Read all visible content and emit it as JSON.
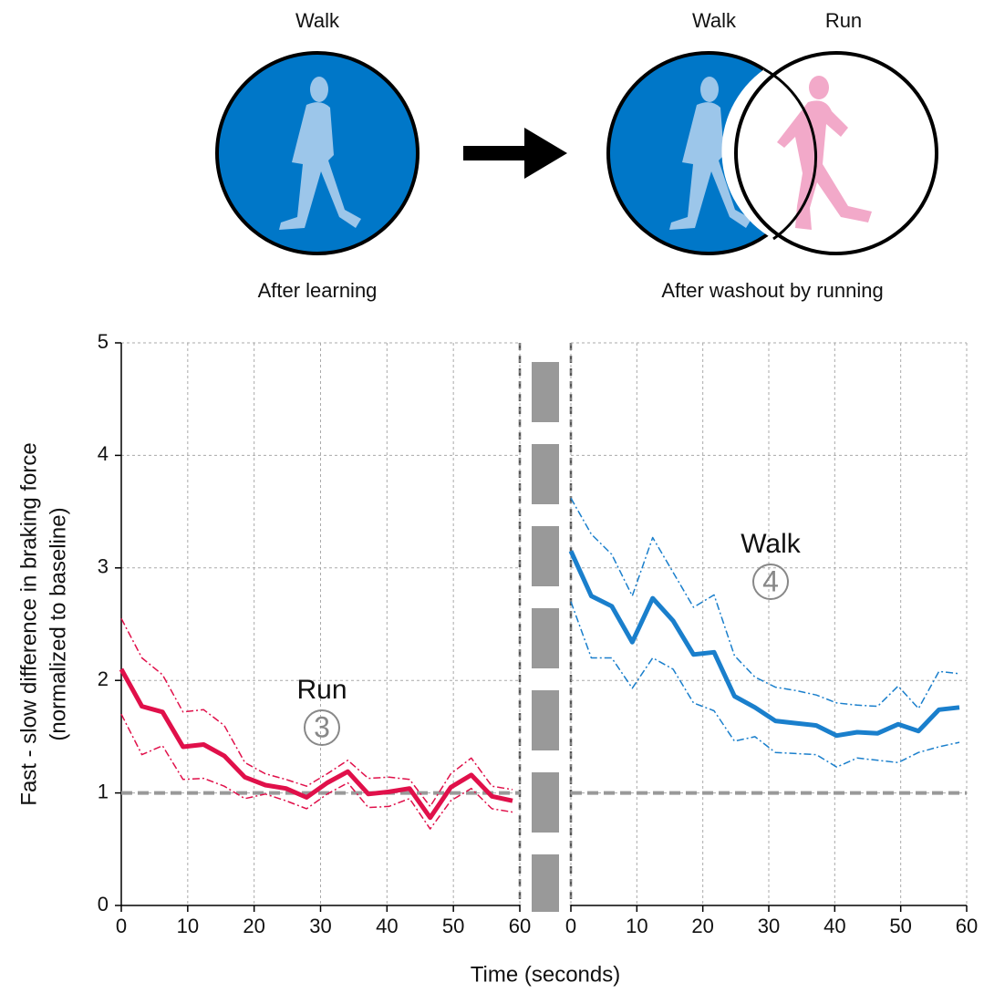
{
  "diagram": {
    "left_circle_label": "Walk",
    "left_caption": "After learning",
    "right_circle_labels": [
      "Walk",
      "Run"
    ],
    "right_caption": "After washout by running"
  },
  "chart_data": [
    {
      "type": "line",
      "annotation": "Run",
      "annotation_number": "3",
      "ylabel": [
        "Fast - slow difference in braking force",
        "(normalized to baseline)"
      ],
      "xlabel": "Time (seconds)",
      "x": [
        0,
        3.1,
        6.2,
        9.3,
        12.4,
        15.5,
        18.6,
        21.7,
        24.8,
        27.9,
        31,
        34.1,
        37.2,
        40.3,
        43.4,
        46.5,
        49.6,
        52.7,
        55.8,
        58.9
      ],
      "series": [
        {
          "color": "#e0104a",
          "dashed": false,
          "values": [
            2.1,
            1.77,
            1.72,
            1.41,
            1.43,
            1.33,
            1.14,
            1.07,
            1.04,
            0.96,
            1.09,
            1.19,
            0.99,
            1.01,
            1.04,
            0.78,
            1.05,
            1.16,
            0.97,
            0.93
          ]
        },
        {
          "color": "#e0104a",
          "dashed": true,
          "values": [
            2.55,
            2.2,
            2.05,
            1.72,
            1.74,
            1.6,
            1.27,
            1.17,
            1.12,
            1.06,
            1.17,
            1.29,
            1.13,
            1.14,
            1.12,
            0.88,
            1.17,
            1.31,
            1.06,
            1.03
          ]
        },
        {
          "color": "#e0104a",
          "dashed": true,
          "values": [
            1.7,
            1.34,
            1.42,
            1.12,
            1.13,
            1.06,
            0.95,
            0.99,
            0.93,
            0.86,
            0.99,
            1.09,
            0.87,
            0.88,
            0.95,
            0.68,
            0.93,
            1.04,
            0.86,
            0.83
          ]
        }
      ],
      "xlim": [
        0,
        60
      ],
      "xticks": [
        0,
        10,
        20,
        30,
        40,
        50,
        60
      ],
      "ylim": [
        0,
        5
      ],
      "yticks": [
        0,
        1,
        2,
        3,
        4,
        5
      ],
      "grid": true,
      "hline": 1
    },
    {
      "type": "line",
      "annotation": "Walk",
      "annotation_number": "4",
      "x": [
        0,
        3.1,
        6.2,
        9.3,
        12.4,
        15.5,
        18.6,
        21.7,
        24.8,
        27.9,
        31,
        34.1,
        37.2,
        40.3,
        43.4,
        46.5,
        49.6,
        52.7,
        55.8,
        58.9
      ],
      "series": [
        {
          "color": "#1a7fcc",
          "dashed": false,
          "values": [
            3.15,
            2.75,
            2.66,
            2.34,
            2.73,
            2.53,
            2.23,
            2.25,
            1.86,
            1.76,
            1.64,
            1.62,
            1.6,
            1.51,
            1.54,
            1.53,
            1.61,
            1.55,
            1.74,
            1.76
          ]
        },
        {
          "color": "#1a7fcc",
          "dashed": true,
          "values": [
            3.62,
            3.3,
            3.12,
            2.75,
            3.27,
            2.96,
            2.65,
            2.76,
            2.22,
            2.03,
            1.94,
            1.91,
            1.87,
            1.8,
            1.78,
            1.77,
            1.95,
            1.75,
            2.08,
            2.06
          ]
        },
        {
          "color": "#1a7fcc",
          "dashed": true,
          "values": [
            2.7,
            2.2,
            2.2,
            1.93,
            2.2,
            2.1,
            1.8,
            1.73,
            1.46,
            1.5,
            1.36,
            1.35,
            1.34,
            1.23,
            1.31,
            1.29,
            1.27,
            1.36,
            1.41,
            1.45
          ]
        }
      ],
      "xlim": [
        0,
        60
      ],
      "xticks": [
        0,
        10,
        20,
        30,
        40,
        50,
        60
      ],
      "ylim": [
        0,
        5
      ],
      "yticks": [
        0,
        1,
        2,
        3,
        4,
        5
      ],
      "grid": true,
      "hline": 1
    }
  ]
}
